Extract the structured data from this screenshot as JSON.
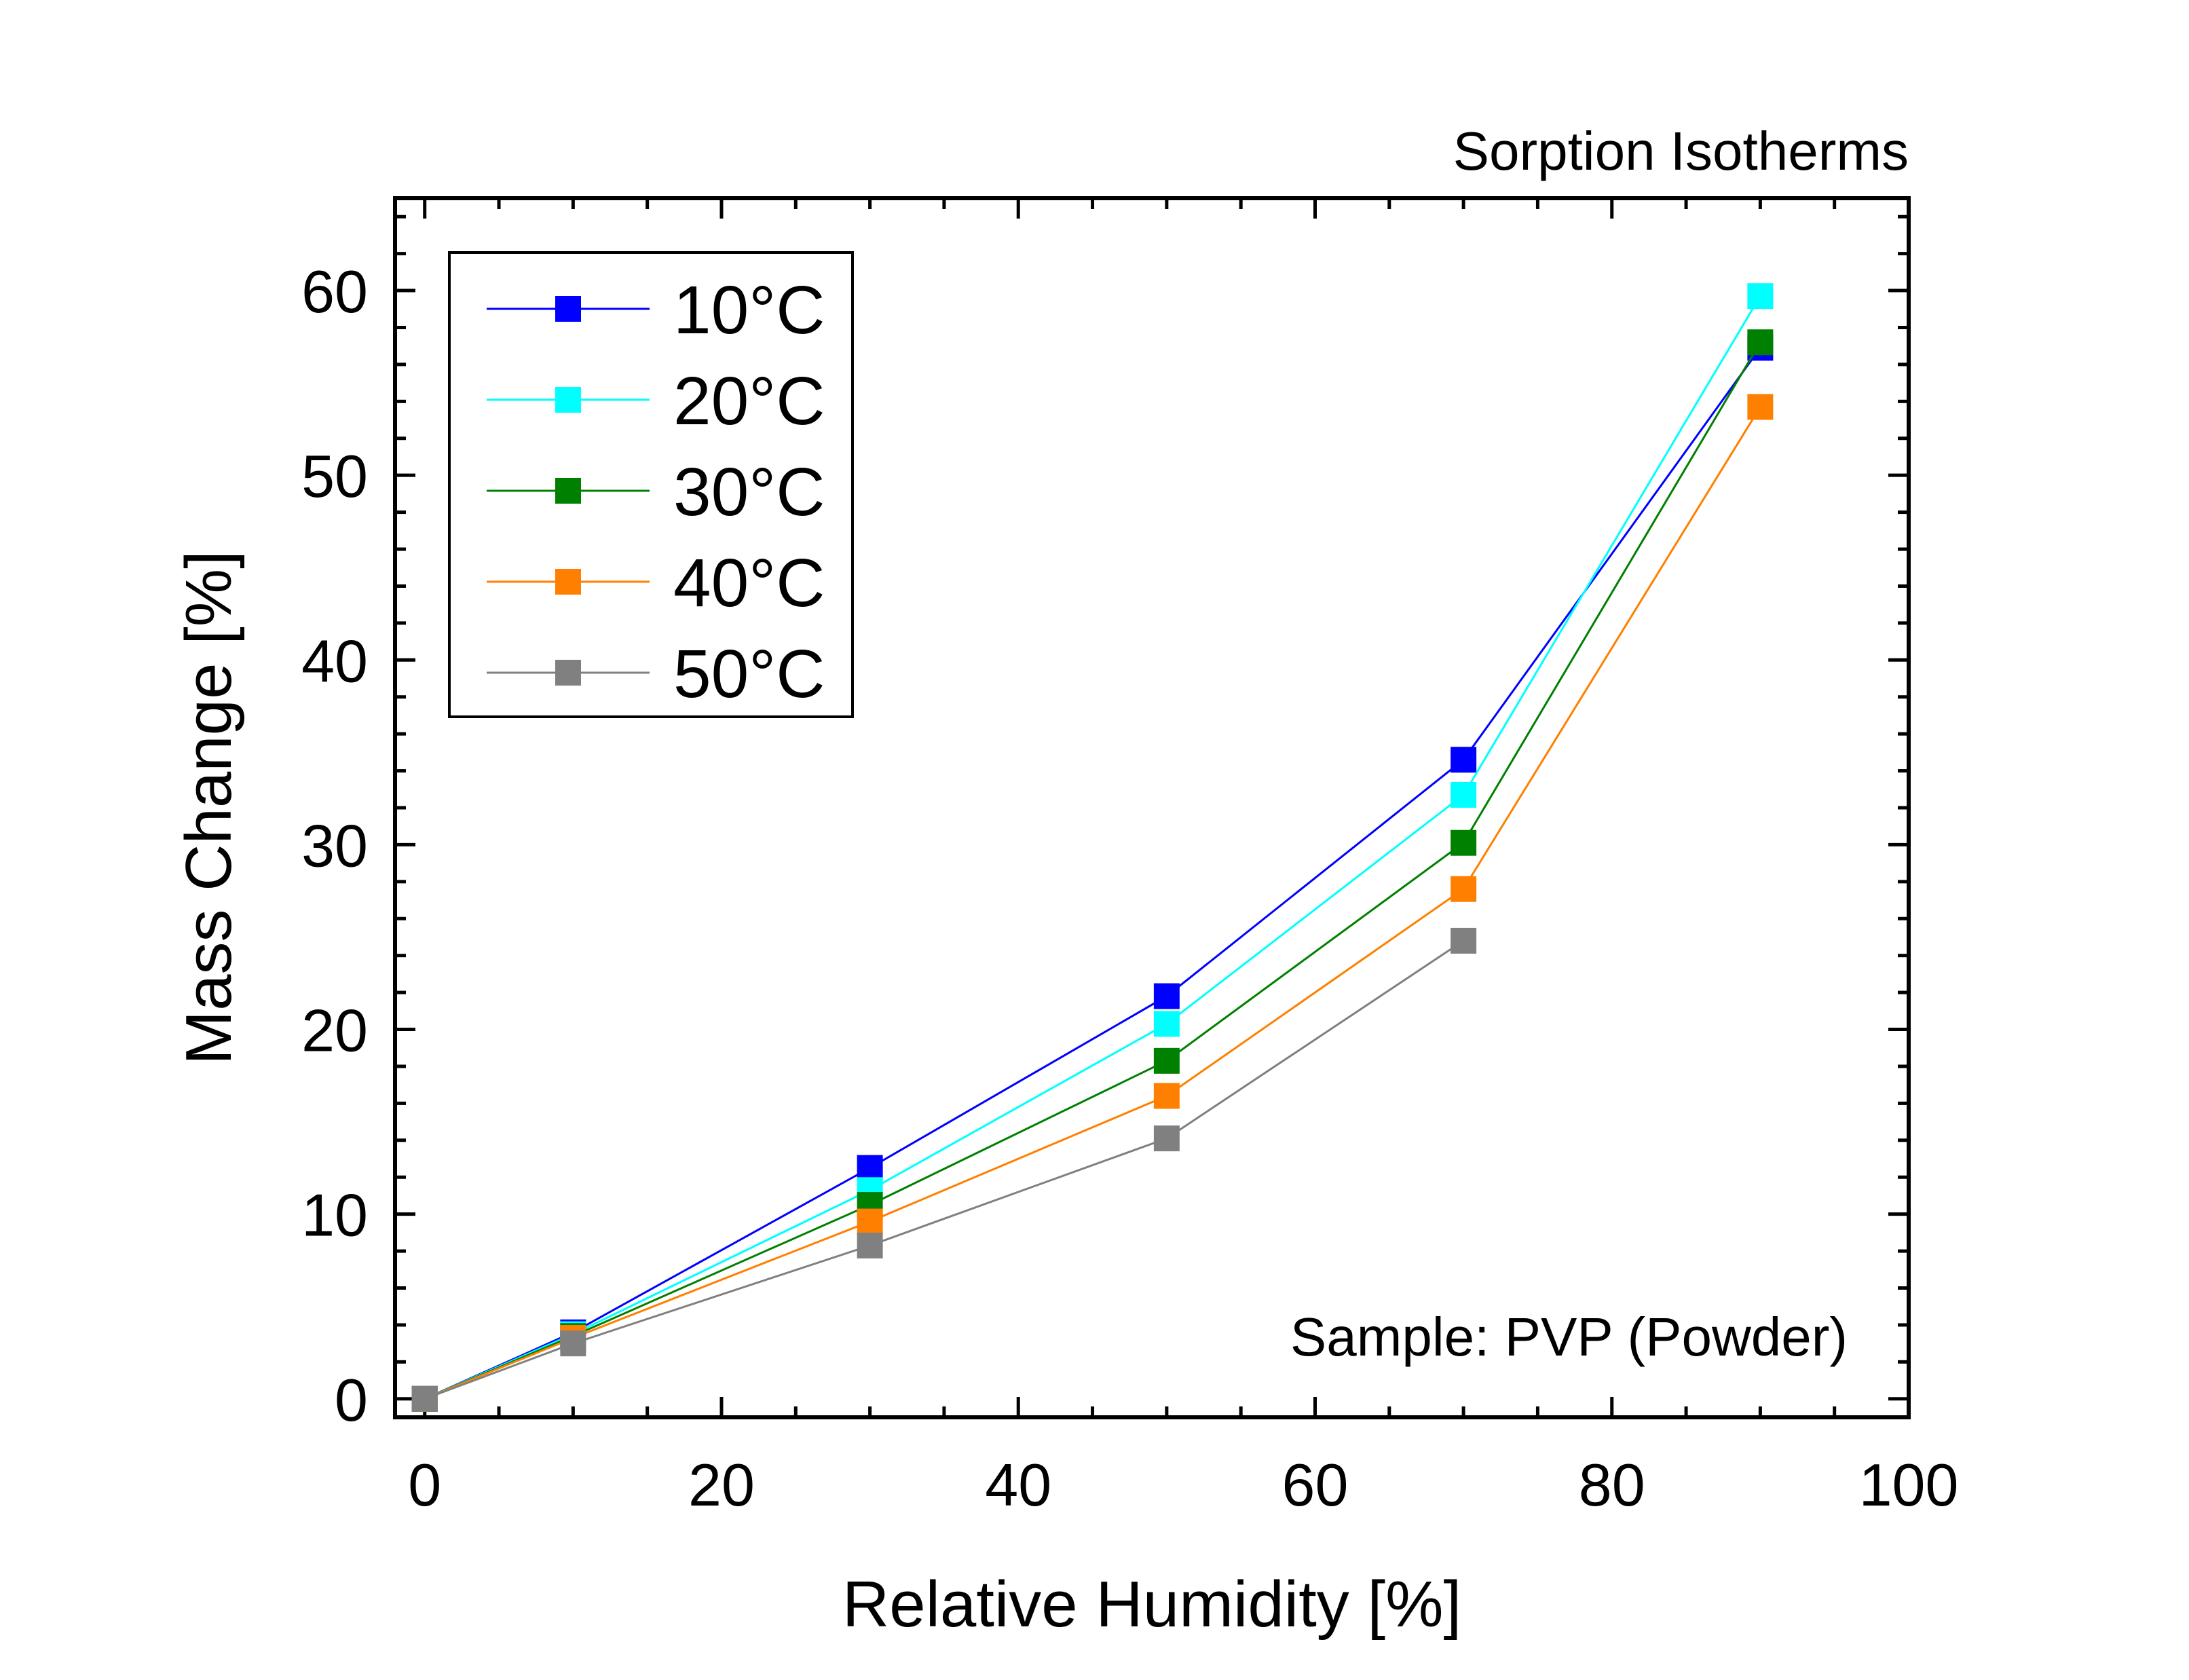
{
  "chart_data": {
    "type": "line",
    "title": "Sorption Isotherms",
    "annotation": "Sample: PVP (Powder)",
    "xlabel": "Relative Humidity [%]",
    "ylabel": "Mass Change [%]",
    "xlim": [
      -2,
      100
    ],
    "ylim": [
      -1,
      65
    ],
    "xticks": [
      0,
      20,
      40,
      60,
      80,
      100
    ],
    "yticks": [
      0,
      10,
      20,
      30,
      40,
      50,
      60
    ],
    "grid": false,
    "legend_position": "top-left",
    "marker": "square",
    "x": [
      0,
      10,
      30,
      50,
      70,
      90
    ],
    "series": [
      {
        "name": "10°C",
        "color": "#0000ff",
        "values": [
          0,
          3.6,
          12.5,
          21.8,
          34.6,
          56.9
        ]
      },
      {
        "name": "20°C",
        "color": "#00ffff",
        "values": [
          0,
          3.5,
          11.3,
          20.3,
          32.7,
          59.7
        ]
      },
      {
        "name": "30°C",
        "color": "#008000",
        "values": [
          0,
          3.4,
          10.5,
          18.3,
          30.1,
          57.2
        ]
      },
      {
        "name": "40°C",
        "color": "#ff8000",
        "values": [
          0,
          3.3,
          9.6,
          16.4,
          27.6,
          53.7
        ]
      },
      {
        "name": "50°C",
        "color": "#808080",
        "values": [
          0,
          3.0,
          8.3,
          14.1,
          24.8,
          null
        ]
      }
    ]
  }
}
